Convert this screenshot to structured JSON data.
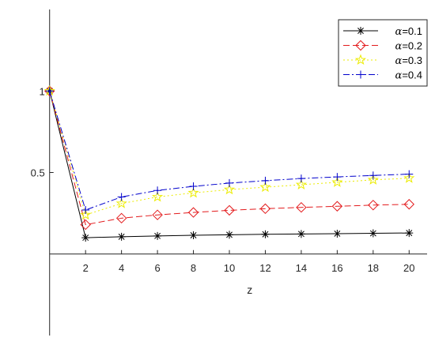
{
  "chart_data": {
    "type": "line",
    "title": "",
    "xlabel": "z",
    "ylabel": "",
    "x": [
      0,
      2,
      4,
      6,
      8,
      10,
      12,
      14,
      16,
      18,
      20
    ],
    "xticks": [
      2,
      4,
      6,
      8,
      10,
      12,
      14,
      16,
      18,
      20
    ],
    "yticks": [
      0.5,
      1
    ],
    "xlim": [
      -1,
      21
    ],
    "ylim": [
      -0.5,
      1.5
    ],
    "grid": false,
    "legend_position": "top-right",
    "series": [
      {
        "name": "α=0.1",
        "name_symbol": "α",
        "name_suffix": "=0.1",
        "color": "#000000",
        "line_style": "solid",
        "marker": "asterisk",
        "values": [
          1.0,
          0.1,
          0.106,
          0.111,
          0.115,
          0.118,
          0.121,
          0.123,
          0.125,
          0.127,
          0.129
        ]
      },
      {
        "name": "α=0.2",
        "name_symbol": "α",
        "name_suffix": "=0.2",
        "color": "#e31a1c",
        "line_style": "dashed",
        "marker": "diamond",
        "values": [
          1.0,
          0.18,
          0.22,
          0.24,
          0.255,
          0.268,
          0.278,
          0.286,
          0.293,
          0.3,
          0.305
        ]
      },
      {
        "name": "α=0.3",
        "name_symbol": "α",
        "name_suffix": "=0.3",
        "color": "#ecec00",
        "line_style": "dotted",
        "marker": "star",
        "values": [
          1.0,
          0.24,
          0.31,
          0.35,
          0.375,
          0.395,
          0.41,
          0.425,
          0.44,
          0.455,
          0.465
        ]
      },
      {
        "name": "α=0.4",
        "name_symbol": "α",
        "name_suffix": "=0.4",
        "color": "#0000cc",
        "line_style": "dashdot",
        "marker": "plus",
        "values": [
          1.0,
          0.27,
          0.35,
          0.39,
          0.415,
          0.435,
          0.45,
          0.463,
          0.473,
          0.482,
          0.49
        ]
      }
    ]
  }
}
